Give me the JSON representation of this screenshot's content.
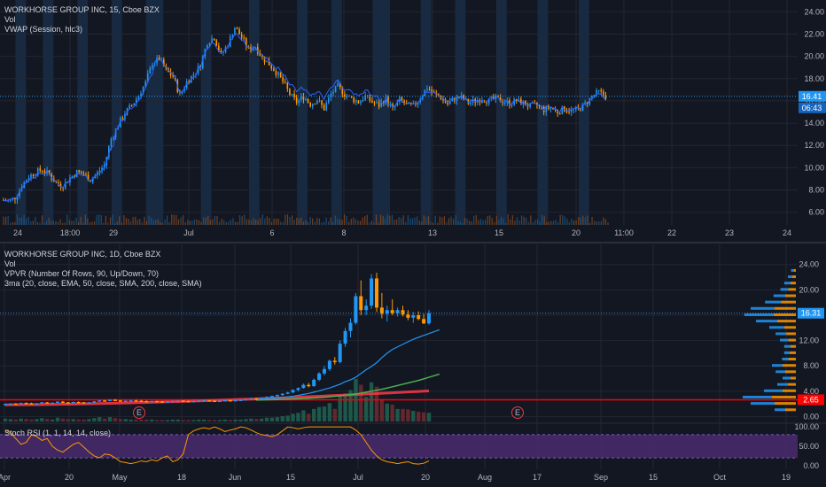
{
  "colors": {
    "background": "#131722",
    "grid": "#232733",
    "up": "#2196f3",
    "down": "#ff9800",
    "session_band": "#1b3a5c",
    "vwap": "#2962ff",
    "last_price": "#2196f3",
    "ema20": "#2196f3",
    "sma50": "#4caf50",
    "sma200": "#f23645",
    "support": "#ff0000",
    "stoch": "#ff9800",
    "stoch_band": "#4a2c6e"
  },
  "top_panel": {
    "title": "WORKHORSE GROUP INC, 15, Cboe BZX",
    "vol_label": "Vol",
    "vwap_label": "VWAP (Session, hlc3)",
    "last_price_tag": "16.41",
    "countdown_tag": "06:43"
  },
  "bottom_panel": {
    "title": "WORKHORSE GROUP INC, 1D, Cboe BZX",
    "vol_label": "Vol",
    "vpvr_label": "VPVR (Number Of Rows, 90, Up/Down, 70)",
    "ma_label": "3ma (20, close, EMA, 50, close, SMA, 200, close, SMA)",
    "last_price_tag": "16.31",
    "support_tag": "2.65",
    "earnings_marker": "E"
  },
  "stoch_panel": {
    "title": "Stoch RSI (1, 1, 14, 14, close)"
  },
  "chart_data": [
    {
      "type": "candlestick",
      "title": "WORKHORSE GROUP INC, 15, Cboe BZX",
      "x_tick_labels": [
        "24",
        "18:00",
        "29",
        "Jul",
        "6",
        "8",
        "13",
        "15",
        "20",
        "11:00",
        "22",
        "23",
        "24"
      ],
      "y_ticks": [
        6.0,
        8.0,
        10.0,
        12.0,
        14.0,
        16.0,
        18.0,
        20.0,
        22.0,
        24.0
      ],
      "ylim": [
        5.5,
        24.5
      ],
      "last_price": 16.41,
      "close_path": [
        7.1,
        7.0,
        7.3,
        8.4,
        9.2,
        9.6,
        9.8,
        9.4,
        8.6,
        8.4,
        9.1,
        9.6,
        9.4,
        8.9,
        9.5,
        10.2,
        12.6,
        13.8,
        14.9,
        15.6,
        16.5,
        17.6,
        19.4,
        19.8,
        18.7,
        18.2,
        16.5,
        17.7,
        18.4,
        19.2,
        21.3,
        21.7,
        20.1,
        21.1,
        22.6,
        21.7,
        20.6,
        20.9,
        19.9,
        19.3,
        18.6,
        17.7,
        16.6,
        15.9,
        16.4,
        15.7,
        16.1,
        15.3,
        16.6,
        17.3,
        16.6,
        16.2,
        15.9,
        16.4,
        15.9,
        15.6,
        16.2,
        15.2,
        16.1,
        15.6,
        15.5,
        16.3,
        17.2,
        16.6,
        16.3,
        15.7,
        16.2,
        16.3,
        15.8,
        16.0,
        16.2,
        16.0,
        16.2,
        16.0,
        15.8,
        16.0,
        15.8,
        15.5,
        15.6,
        15.2,
        15.4,
        15.0,
        15.3,
        15.1,
        15.2,
        15.7,
        16.4,
        16.8,
        16.41
      ],
      "session_band_index_ranges": [
        [
          2,
          3
        ],
        [
          6,
          7
        ],
        [
          11,
          12
        ],
        [
          16,
          17
        ],
        [
          21,
          23
        ],
        [
          29,
          30
        ],
        [
          36,
          37
        ],
        [
          43,
          44
        ],
        [
          48,
          49
        ],
        [
          54,
          56
        ],
        [
          61,
          62
        ],
        [
          66,
          67
        ],
        [
          72,
          73
        ],
        [
          78,
          79
        ],
        [
          84,
          85
        ]
      ]
    },
    {
      "type": "candlestick",
      "title": "WORKHORSE GROUP INC, 1D, Cboe BZX",
      "x_tick_labels": [
        "Apr",
        "20",
        "May",
        "18",
        "Jun",
        "15",
        "Jul",
        "20",
        "Aug",
        "17",
        "Sep",
        "15",
        "Oct",
        "19"
      ],
      "y_ticks": [
        0.0,
        4.0,
        8.0,
        12.0,
        16.0,
        20.0,
        24.0
      ],
      "ylim": [
        -0.5,
        25.5
      ],
      "last_price": 16.31,
      "support_level": 2.65,
      "candles": [
        [
          2.0,
          2.05,
          1.9,
          2.0
        ],
        [
          2.0,
          2.1,
          1.95,
          2.05
        ],
        [
          2.05,
          2.1,
          1.95,
          2.0
        ],
        [
          2.0,
          2.2,
          1.98,
          2.15
        ],
        [
          2.15,
          2.25,
          2.05,
          2.1
        ],
        [
          2.1,
          2.2,
          2.0,
          2.05
        ],
        [
          2.05,
          2.15,
          2.0,
          2.1
        ],
        [
          2.1,
          2.3,
          2.05,
          2.25
        ],
        [
          2.25,
          2.3,
          2.1,
          2.15
        ],
        [
          2.15,
          2.25,
          2.1,
          2.2
        ],
        [
          2.2,
          2.4,
          2.15,
          2.35
        ],
        [
          2.35,
          2.45,
          2.2,
          2.25
        ],
        [
          2.25,
          2.3,
          2.15,
          2.2
        ],
        [
          2.2,
          2.35,
          2.15,
          2.3
        ],
        [
          2.3,
          2.4,
          2.2,
          2.25
        ],
        [
          2.25,
          2.3,
          2.15,
          2.2
        ],
        [
          2.2,
          2.3,
          2.15,
          2.25
        ],
        [
          2.25,
          2.45,
          2.2,
          2.4
        ],
        [
          2.4,
          2.6,
          2.35,
          2.55
        ],
        [
          2.55,
          2.6,
          2.4,
          2.45
        ],
        [
          2.45,
          2.7,
          2.4,
          2.65
        ],
        [
          2.65,
          2.75,
          2.5,
          2.55
        ],
        [
          2.55,
          2.6,
          2.4,
          2.45
        ],
        [
          2.45,
          2.55,
          2.35,
          2.5
        ],
        [
          2.5,
          2.6,
          2.45,
          2.55
        ],
        [
          2.55,
          2.65,
          2.45,
          2.5
        ],
        [
          2.5,
          2.6,
          2.4,
          2.45
        ],
        [
          2.45,
          2.55,
          2.35,
          2.4
        ],
        [
          2.4,
          2.5,
          2.3,
          2.45
        ],
        [
          2.45,
          2.5,
          2.35,
          2.4
        ],
        [
          2.4,
          2.45,
          2.3,
          2.35
        ],
        [
          2.35,
          2.45,
          2.3,
          2.4
        ],
        [
          2.4,
          2.5,
          2.35,
          2.45
        ],
        [
          2.45,
          2.55,
          2.4,
          2.5
        ],
        [
          2.5,
          2.55,
          2.4,
          2.45
        ],
        [
          2.45,
          2.5,
          2.35,
          2.4
        ],
        [
          2.4,
          2.5,
          2.35,
          2.45
        ],
        [
          2.45,
          2.55,
          2.4,
          2.5
        ],
        [
          2.5,
          2.6,
          2.45,
          2.55
        ],
        [
          2.55,
          2.6,
          2.45,
          2.5
        ],
        [
          2.5,
          2.55,
          2.4,
          2.45
        ],
        [
          2.45,
          2.55,
          2.4,
          2.5
        ],
        [
          2.5,
          2.6,
          2.45,
          2.58
        ],
        [
          2.58,
          2.65,
          2.5,
          2.55
        ],
        [
          2.55,
          2.62,
          2.48,
          2.6
        ],
        [
          2.6,
          2.7,
          2.55,
          2.65
        ],
        [
          2.65,
          2.8,
          2.6,
          2.75
        ],
        [
          2.75,
          2.9,
          2.7,
          2.85
        ],
        [
          2.85,
          2.95,
          2.75,
          2.8
        ],
        [
          2.8,
          3.0,
          2.75,
          2.95
        ],
        [
          2.95,
          3.2,
          2.9,
          3.1
        ],
        [
          3.1,
          3.3,
          3.0,
          3.25
        ],
        [
          3.25,
          3.5,
          3.15,
          3.4
        ],
        [
          3.4,
          3.7,
          3.3,
          3.6
        ],
        [
          3.6,
          3.9,
          3.5,
          3.8
        ],
        [
          3.8,
          4.3,
          3.7,
          4.2
        ],
        [
          4.2,
          4.6,
          4.0,
          4.5
        ],
        [
          4.5,
          5.2,
          4.4,
          5.0
        ],
        [
          5.0,
          5.3,
          4.6,
          4.8
        ],
        [
          4.8,
          6.0,
          4.7,
          5.8
        ],
        [
          5.8,
          7.0,
          5.6,
          6.8
        ],
        [
          6.8,
          8.0,
          6.5,
          7.5
        ],
        [
          7.5,
          9.0,
          7.2,
          8.8
        ],
        [
          8.8,
          9.4,
          8.2,
          8.6
        ],
        [
          8.6,
          12.0,
          8.4,
          11.5
        ],
        [
          11.5,
          14.0,
          11.0,
          13.5
        ],
        [
          13.5,
          15.5,
          12.5,
          14.8
        ],
        [
          14.8,
          19.5,
          14.5,
          19.0
        ],
        [
          19.0,
          21.5,
          16.0,
          16.8
        ],
        [
          16.8,
          18.5,
          16.0,
          17.5
        ],
        [
          17.5,
          22.5,
          17.0,
          21.8
        ],
        [
          21.8,
          22.7,
          16.5,
          17.2
        ],
        [
          17.2,
          19.5,
          15.5,
          16.2
        ],
        [
          16.2,
          17.5,
          15.0,
          16.8
        ],
        [
          16.8,
          18.5,
          16.0,
          16.3
        ],
        [
          16.3,
          17.2,
          15.8,
          16.8
        ],
        [
          16.8,
          17.5,
          15.8,
          16.1
        ],
        [
          16.1,
          16.8,
          15.2,
          15.6
        ],
        [
          15.6,
          16.5,
          14.8,
          16.0
        ],
        [
          16.0,
          16.6,
          15.2,
          15.4
        ],
        [
          15.4,
          16.2,
          14.6,
          14.7
        ],
        [
          14.7,
          16.8,
          14.5,
          16.31
        ]
      ],
      "volume": [
        0.6,
        0.5,
        0.4,
        0.6,
        0.5,
        0.4,
        0.5,
        0.7,
        0.5,
        0.4,
        0.8,
        0.6,
        0.5,
        0.5,
        0.4,
        0.4,
        0.5,
        0.7,
        0.9,
        0.6,
        0.9,
        0.7,
        0.5,
        0.5,
        0.4,
        0.4,
        0.4,
        0.4,
        0.4,
        0.3,
        0.3,
        0.3,
        0.4,
        0.4,
        0.3,
        0.3,
        0.3,
        0.4,
        0.4,
        0.3,
        0.3,
        0.3,
        0.4,
        0.3,
        0.4,
        0.4,
        0.5,
        0.6,
        0.5,
        0.6,
        0.8,
        0.8,
        0.9,
        1.1,
        1.2,
        1.6,
        1.8,
        2.3,
        1.6,
        2.6,
        3.0,
        3.1,
        3.8,
        2.6,
        5.2,
        5.8,
        6.5,
        8.8,
        7.6,
        5.1,
        8.1,
        7.2,
        4.6,
        3.7,
        3.5,
        2.6,
        2.6,
        2.5,
        2.2,
        2.0,
        1.9,
        1.8
      ],
      "ema20_from_index": 48,
      "ema20": [
        2.7,
        2.75,
        2.8,
        2.85,
        2.9,
        3.0,
        3.1,
        3.2,
        3.35,
        3.5,
        3.65,
        3.85,
        4.05,
        4.3,
        4.5,
        4.8,
        5.1,
        5.5,
        5.8,
        6.2,
        6.8,
        7.4,
        7.9,
        8.5,
        9.3,
        10.0,
        10.6,
        11.0,
        11.4,
        11.8,
        12.2,
        12.5,
        12.8,
        13.1,
        13.4,
        13.7
      ],
      "sma50_from_index": 48,
      "sma50": [
        2.6,
        2.62,
        2.64,
        2.66,
        2.68,
        2.71,
        2.74,
        2.77,
        2.81,
        2.85,
        2.89,
        2.94,
        2.99,
        3.05,
        3.12,
        3.2,
        3.28,
        3.37,
        3.46,
        3.56,
        3.7,
        3.85,
        4.0,
        4.15,
        4.3,
        4.5,
        4.7,
        4.9,
        5.1,
        5.3,
        5.5,
        5.7,
        5.95,
        6.2,
        6.45,
        6.7
      ],
      "sma200_from_index": 0,
      "sma200_start": 1.85,
      "sma200_end": 4.05,
      "earnings_marker_dates": [
        "May",
        "Aug"
      ],
      "vpvr_rows": [
        [
          1,
          0.2,
          0.2
        ],
        [
          2,
          0.45,
          0.4
        ],
        [
          3,
          0.55,
          0.45
        ],
        [
          4,
          0.35,
          0.25
        ],
        [
          5,
          0.2,
          0.15
        ],
        [
          6,
          0.15,
          0.1
        ],
        [
          7,
          0.18,
          0.2
        ],
        [
          8,
          0.2,
          0.25
        ],
        [
          9,
          0.12,
          0.14
        ],
        [
          10,
          0.1,
          0.12
        ],
        [
          11,
          0.12,
          0.1
        ],
        [
          12,
          0.16,
          0.14
        ],
        [
          13,
          0.2,
          0.18
        ],
        [
          14,
          0.28,
          0.22
        ],
        [
          15,
          0.4,
          0.35
        ],
        [
          16,
          0.55,
          0.42
        ],
        [
          17,
          0.45,
          0.4
        ],
        [
          18,
          0.3,
          0.28
        ],
        [
          19,
          0.22,
          0.2
        ],
        [
          20,
          0.15,
          0.14
        ],
        [
          21,
          0.12,
          0.1
        ],
        [
          22,
          0.08,
          0.07
        ],
        [
          23,
          0.05,
          0.04
        ]
      ]
    },
    {
      "type": "line",
      "title": "Stoch RSI (1, 1, 14, 14, close)",
      "y_ticks": [
        0.0,
        50.0,
        100.0
      ],
      "ylim": [
        -5,
        105
      ],
      "band": [
        20,
        80
      ],
      "values": [
        92,
        85,
        70,
        55,
        60,
        80,
        75,
        65,
        70,
        50,
        40,
        35,
        45,
        55,
        60,
        48,
        35,
        25,
        20,
        30,
        28,
        20,
        10,
        8,
        5,
        8,
        12,
        10,
        15,
        12,
        20,
        25,
        10,
        15,
        30,
        80,
        90,
        95,
        98,
        95,
        100,
        95,
        88,
        92,
        95,
        100,
        98,
        92,
        85,
        80,
        78,
        75,
        80,
        90,
        100,
        98,
        95,
        98,
        100,
        100,
        100,
        100,
        100,
        100,
        100,
        100,
        100,
        92,
        80,
        60,
        40,
        25,
        15,
        10,
        8,
        5,
        8,
        10,
        5,
        4,
        6,
        12
      ]
    }
  ]
}
